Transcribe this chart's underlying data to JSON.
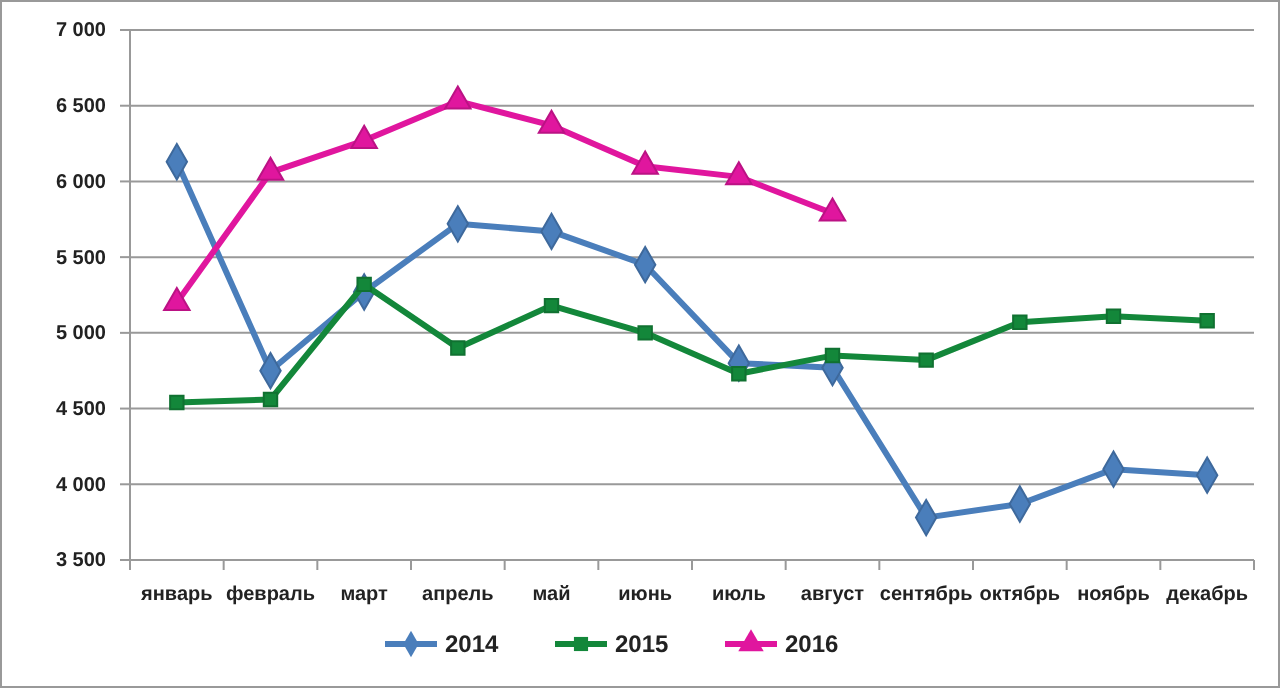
{
  "chart_data": {
    "type": "line",
    "categories": [
      "январь",
      "февраль",
      "март",
      "апрель",
      "май",
      "июнь",
      "июль",
      "август",
      "сентябрь",
      "октябрь",
      "ноябрь",
      "декабрь"
    ],
    "series": [
      {
        "name": "2014",
        "color": "#4a7ebb",
        "marker": "diamond",
        "values": [
          6130,
          4750,
          5270,
          5720,
          5670,
          5450,
          4800,
          4770,
          3780,
          3870,
          4100,
          4060
        ]
      },
      {
        "name": "2015",
        "color": "#13873a",
        "marker": "square",
        "values": [
          4540,
          4560,
          5320,
          4900,
          5180,
          5000,
          4730,
          4850,
          4820,
          5070,
          5110,
          5080
        ]
      },
      {
        "name": "2016",
        "color": "#e0169e",
        "marker": "triangle",
        "values": [
          5200,
          6060,
          6270,
          6530,
          6370,
          6100,
          6030,
          5790,
          null,
          null,
          null,
          null
        ]
      }
    ],
    "ylim": [
      3500,
      7000
    ],
    "yticks": [
      {
        "value": 3500,
        "label": "3 500"
      },
      {
        "value": 4000,
        "label": "4 000"
      },
      {
        "value": 4500,
        "label": "4 500"
      },
      {
        "value": 5000,
        "label": "5 000"
      },
      {
        "value": 5500,
        "label": "5 500"
      },
      {
        "value": 6000,
        "label": "6 000"
      },
      {
        "value": 6500,
        "label": "6 500"
      },
      {
        "value": 7000,
        "label": "7 000"
      }
    ],
    "grid": "y",
    "legend": "bottom"
  }
}
